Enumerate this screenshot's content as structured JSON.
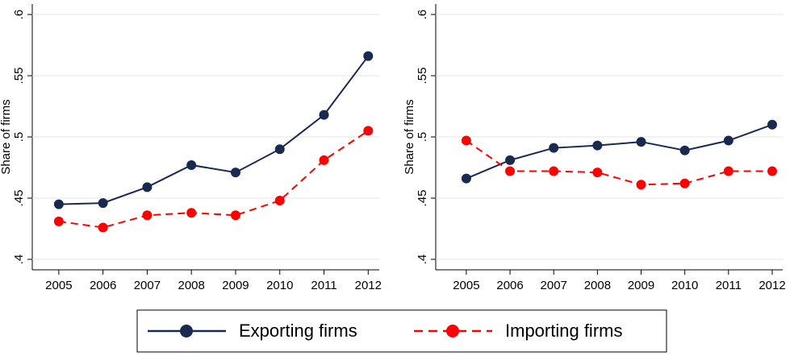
{
  "chart_data": [
    {
      "type": "line",
      "y_label": "Share of firms",
      "x": [
        2005,
        2006,
        2007,
        2008,
        2009,
        2010,
        2011,
        2012
      ],
      "xlim": [
        2004.4,
        2012.25
      ],
      "xticks": [
        2005,
        2006,
        2007,
        2008,
        2009,
        2010,
        2011,
        2012
      ],
      "ylim": [
        0.4,
        0.6
      ],
      "yticks": [
        {
          "value": 0.4,
          "label": ".4"
        },
        {
          "value": 0.45,
          "label": ".45"
        },
        {
          "value": 0.5,
          "label": ".5"
        },
        {
          "value": 0.55,
          "label": ".55"
        },
        {
          "value": 0.6,
          "label": ".6"
        }
      ],
      "grid": true,
      "series": [
        {
          "name": "Exporting firms",
          "color": "#1a2a4f",
          "dash": false,
          "values": [
            0.445,
            0.446,
            0.459,
            0.477,
            0.471,
            0.49,
            0.518,
            0.566
          ]
        },
        {
          "name": "Importing firms",
          "color": "#ff0000",
          "dash": true,
          "values": [
            0.431,
            0.426,
            0.436,
            0.438,
            0.436,
            0.448,
            0.481,
            0.505
          ]
        }
      ]
    },
    {
      "type": "line",
      "y_label": "Share of firms",
      "x": [
        2005,
        2006,
        2007,
        2008,
        2009,
        2010,
        2011,
        2012
      ],
      "xlim": [
        2004.3,
        2012.24
      ],
      "xticks": [
        2005,
        2006,
        2007,
        2008,
        2009,
        2010,
        2011,
        2012
      ],
      "ylim": [
        0.4,
        0.6
      ],
      "yticks": [
        {
          "value": 0.4,
          "label": ".4"
        },
        {
          "value": 0.45,
          "label": ".45"
        },
        {
          "value": 0.5,
          "label": ".5"
        },
        {
          "value": 0.55,
          "label": ".55"
        },
        {
          "value": 0.6,
          "label": ".6"
        }
      ],
      "grid": true,
      "series": [
        {
          "color": "#1a2a4f",
          "dash": false,
          "values": [
            0.466,
            0.481,
            0.491,
            0.493,
            0.496,
            0.489,
            0.497,
            0.51
          ]
        },
        {
          "color": "#ff0000",
          "dash": true,
          "values": [
            0.497,
            0.472,
            0.472,
            0.471,
            0.461,
            0.462,
            0.472,
            0.472
          ]
        }
      ]
    }
  ]
}
